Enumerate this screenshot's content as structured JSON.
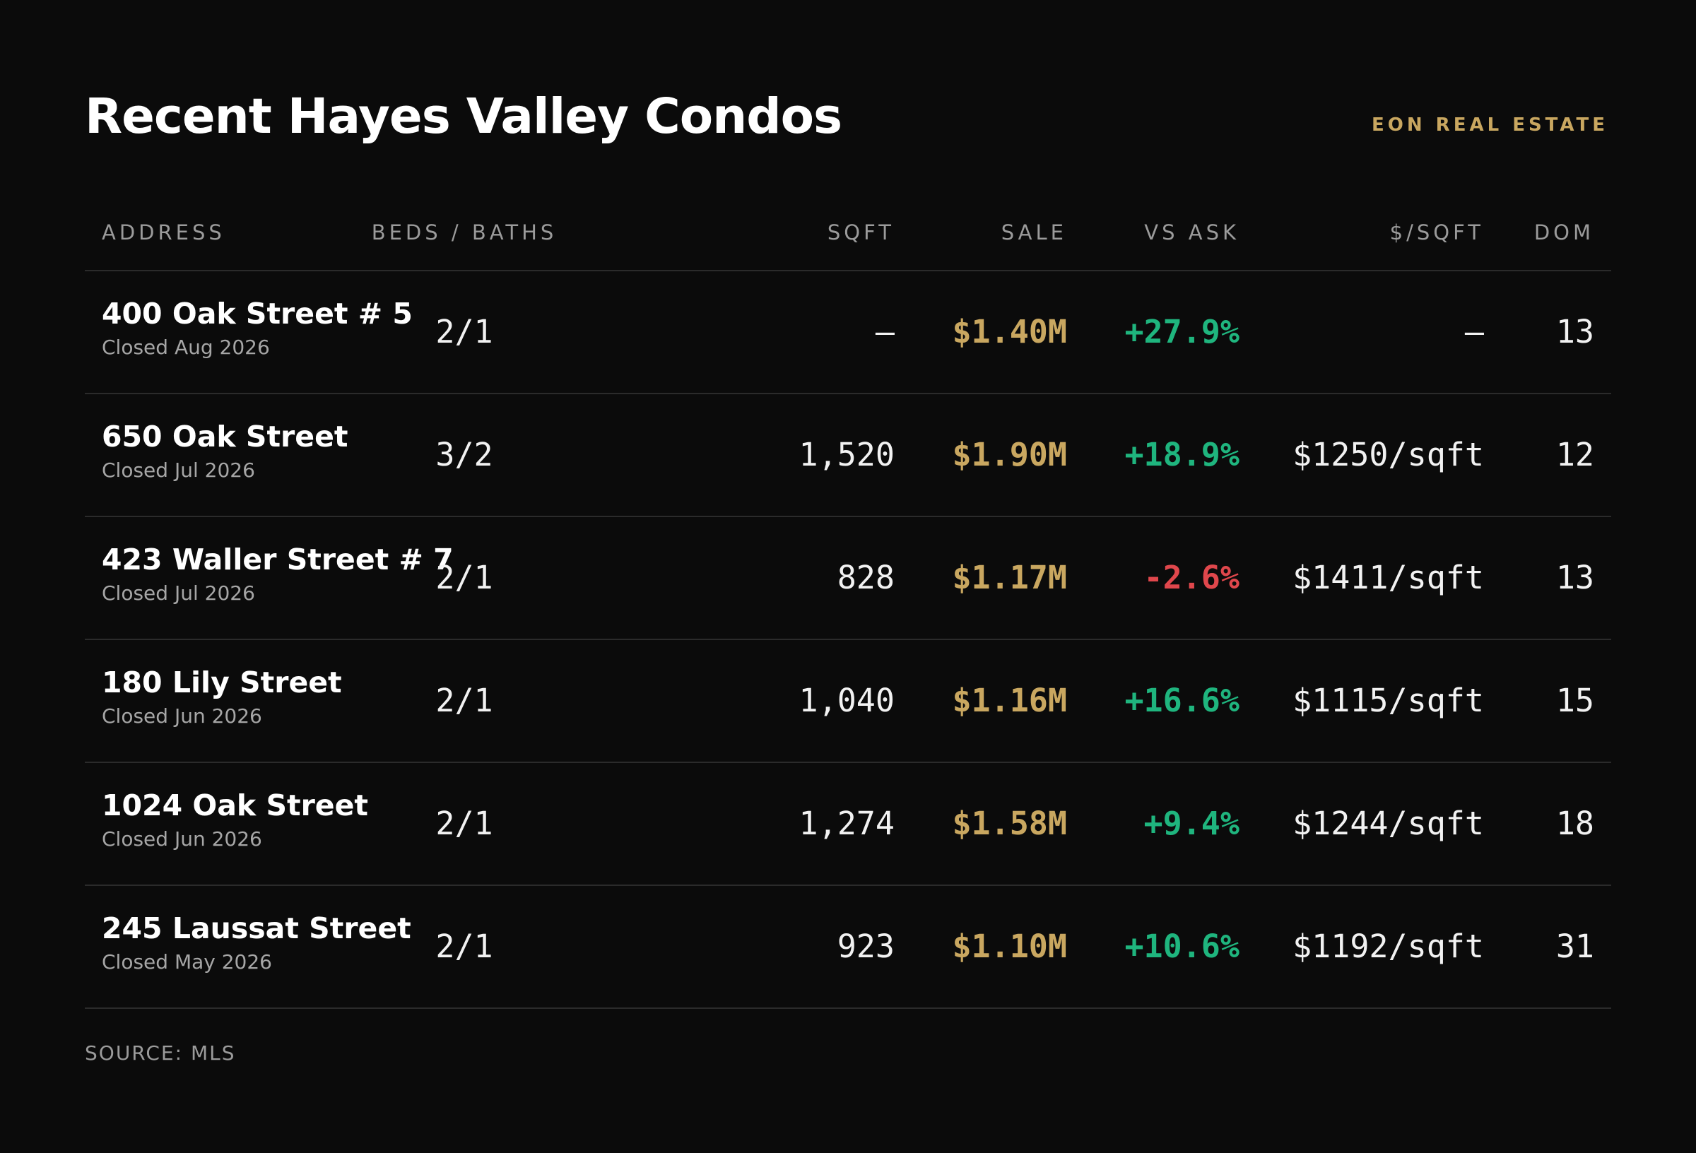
{
  "title": "Recent Hayes Valley Condos",
  "brand": "EON REAL ESTATE",
  "colors": {
    "background": "#0b0b0b",
    "accent_gold": "#c9a760",
    "positive_green": "#1fb57e",
    "negative_red": "#e0474c"
  },
  "columns": {
    "address": "ADDRESS",
    "beds_baths": "BEDS / BATHS",
    "sqft": "SQFT",
    "sale": "SALE",
    "vs_ask": "VS ASK",
    "price_per_sqft": "$/SQFT",
    "dom": "DOM"
  },
  "rows": [
    {
      "address": "400 Oak Street # 5",
      "closed": "Closed Aug 2026",
      "beds_baths": "2/1",
      "sqft": "—",
      "sale": "$1.40M",
      "vs_ask": "+27.9%",
      "vs_ask_sign": "pos",
      "price_per_sqft": "—",
      "dom": "13"
    },
    {
      "address": "650 Oak Street",
      "closed": "Closed Jul 2026",
      "beds_baths": "3/2",
      "sqft": "1,520",
      "sale": "$1.90M",
      "vs_ask": "+18.9%",
      "vs_ask_sign": "pos",
      "price_per_sqft": "$1250/sqft",
      "dom": "12"
    },
    {
      "address": "423 Waller Street # 7",
      "closed": "Closed Jul 2026",
      "beds_baths": "2/1",
      "sqft": "828",
      "sale": "$1.17M",
      "vs_ask": "-2.6%",
      "vs_ask_sign": "neg",
      "price_per_sqft": "$1411/sqft",
      "dom": "13"
    },
    {
      "address": "180 Lily Street",
      "closed": "Closed Jun 2026",
      "beds_baths": "2/1",
      "sqft": "1,040",
      "sale": "$1.16M",
      "vs_ask": "+16.6%",
      "vs_ask_sign": "pos",
      "price_per_sqft": "$1115/sqft",
      "dom": "15"
    },
    {
      "address": "1024 Oak Street",
      "closed": "Closed Jun 2026",
      "beds_baths": "2/1",
      "sqft": "1,274",
      "sale": "$1.58M",
      "vs_ask": "+9.4%",
      "vs_ask_sign": "pos",
      "price_per_sqft": "$1244/sqft",
      "dom": "18"
    },
    {
      "address": "245 Laussat Street",
      "closed": "Closed May 2026",
      "beds_baths": "2/1",
      "sqft": "923",
      "sale": "$1.10M",
      "vs_ask": "+10.6%",
      "vs_ask_sign": "pos",
      "price_per_sqft": "$1192/sqft",
      "dom": "31"
    }
  ],
  "source": "SOURCE: MLS"
}
